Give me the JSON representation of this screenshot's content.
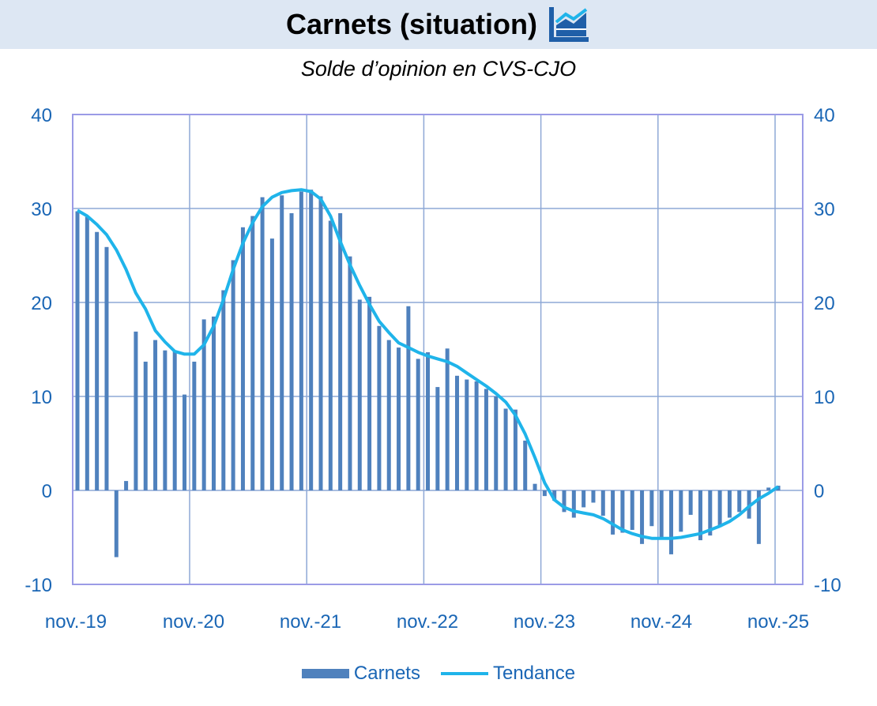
{
  "header": {
    "title": "Carnets (situation)",
    "icon": "chart-icon"
  },
  "subtitle": "Solde d’opinion en CVS-CJO",
  "colors": {
    "bars": "#4f81bd",
    "trend": "#1fb4ea",
    "axis_text": "#1a66b5",
    "grid": "#8ea8d6",
    "frame": "#9b9be6"
  },
  "chart_data": {
    "type": "bar",
    "title": "Carnets (situation)",
    "subtitle": "Solde d’opinion en CVS-CJO",
    "ylim": [
      -10,
      40
    ],
    "yticks": [
      -10,
      0,
      10,
      20,
      30,
      40
    ],
    "grid": true,
    "dual_y_axis": true,
    "legend_position": "bottom",
    "x_tick_labels": [
      "nov.-19",
      "nov.-20",
      "nov.-21",
      "nov.-22",
      "nov.-23",
      "nov.-24",
      "nov.-25"
    ],
    "x_start": "2019-11",
    "x_end": "2025-12",
    "series": [
      {
        "name": "Carnets",
        "kind": "bar",
        "values": [
          29.7,
          29.1,
          27.5,
          25.9,
          -7.1,
          1.0,
          16.9,
          13.7,
          16.0,
          14.9,
          14.9,
          10.2,
          13.7,
          18.2,
          18.5,
          21.3,
          24.5,
          28.0,
          29.2,
          31.2,
          26.8,
          31.4,
          29.5,
          31.8,
          32.0,
          31.3,
          28.7,
          29.5,
          24.9,
          20.3,
          20.6,
          17.5,
          16.0,
          15.2,
          19.6,
          14.0,
          14.7,
          11.0,
          15.1,
          12.2,
          11.8,
          11.6,
          10.8,
          10.0,
          8.7,
          8.6,
          5.3,
          0.7,
          -0.6,
          -1.1,
          -2.3,
          -2.9,
          -1.8,
          -1.3,
          -2.7,
          -4.7,
          -4.5,
          -4.2,
          -5.7,
          -3.8,
          -5.1,
          -6.8,
          -4.4,
          -2.6,
          -5.3,
          -4.8,
          -3.9,
          -2.9,
          -2.3,
          -3.0,
          -5.7,
          0.3,
          0.5
        ]
      },
      {
        "name": "Tendance",
        "kind": "line",
        "values": [
          29.8,
          29.2,
          28.3,
          27.2,
          25.6,
          23.5,
          21.0,
          19.3,
          17.0,
          15.8,
          14.8,
          14.5,
          14.5,
          15.5,
          17.5,
          20.3,
          23.5,
          26.3,
          28.5,
          30.2,
          31.2,
          31.7,
          31.9,
          32.0,
          31.8,
          31.0,
          29.2,
          26.5,
          24.0,
          21.8,
          19.8,
          18.0,
          16.8,
          15.7,
          15.2,
          14.7,
          14.3,
          14.0,
          13.7,
          13.2,
          12.5,
          11.8,
          11.1,
          10.3,
          9.4,
          8.0,
          6.0,
          3.5,
          0.8,
          -1.0,
          -1.8,
          -2.2,
          -2.4,
          -2.6,
          -3.0,
          -3.6,
          -4.2,
          -4.6,
          -4.9,
          -5.1,
          -5.1,
          -5.1,
          -5.0,
          -4.8,
          -4.6,
          -4.2,
          -3.8,
          -3.3,
          -2.6,
          -1.7,
          -0.9,
          -0.3,
          0.4
        ]
      }
    ]
  },
  "legend": {
    "bar_label": "Carnets",
    "line_label": "Tendance"
  }
}
